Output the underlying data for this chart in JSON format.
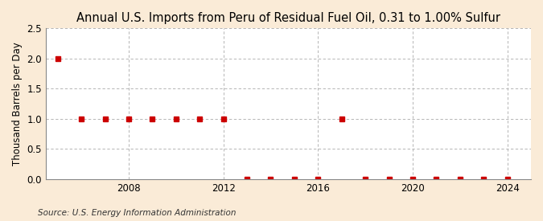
{
  "title": "Annual U.S. Imports from Peru of Residual Fuel Oil, 0.31 to 1.00% Sulfur",
  "ylabel": "Thousand Barrels per Day",
  "source": "Source: U.S. Energy Information Administration",
  "background_color": "#faebd7",
  "plot_bg_color": "#ffffff",
  "years": [
    2005,
    2006,
    2007,
    2008,
    2009,
    2010,
    2011,
    2012,
    2013,
    2014,
    2015,
    2016,
    2017,
    2018,
    2019,
    2020,
    2021,
    2022,
    2023,
    2024
  ],
  "values": [
    2.0,
    1.0,
    1.0,
    1.0,
    1.0,
    1.0,
    1.0,
    1.0,
    0.0,
    0.0,
    0.0,
    0.0,
    1.0,
    0.0,
    0.0,
    0.0,
    0.0,
    0.0,
    0.0,
    0.0
  ],
  "marker_color": "#cc0000",
  "marker_size": 4,
  "xlim": [
    2004.5,
    2025
  ],
  "ylim": [
    0,
    2.5
  ],
  "yticks": [
    0.0,
    0.5,
    1.0,
    1.5,
    2.0,
    2.5
  ],
  "xticks": [
    2008,
    2012,
    2016,
    2020,
    2024
  ],
  "grid_color": "#aaaaaa",
  "title_fontsize": 10.5,
  "label_fontsize": 8.5,
  "tick_fontsize": 8.5,
  "source_fontsize": 7.5
}
